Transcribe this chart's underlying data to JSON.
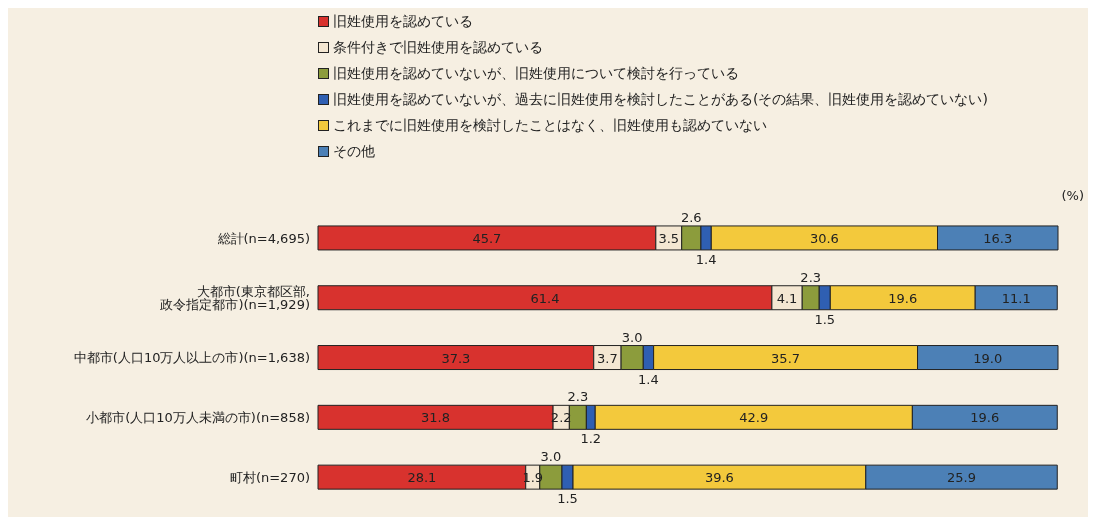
{
  "chart_data": {
    "type": "bar",
    "orientation": "horizontal",
    "stacked": true,
    "xlabel": "(%)",
    "legend": "top left",
    "categories": [
      "総計(n=4,695)",
      "大都市(東京都区部, 政令指定都市)(n=1,929)",
      "中都市(人口10万人以上の市)(n=1,638)",
      "小都市(人口10万人未満の市)(n=858)",
      "町村(n=270)"
    ],
    "series": [
      {
        "name": "旧姓使用を認めている",
        "color": "#d8322e",
        "values": [
          45.7,
          61.4,
          37.3,
          31.8,
          28.1
        ],
        "value_labels": [
          "45.7",
          "61.4",
          "37.3",
          "31.8",
          "28.1"
        ]
      },
      {
        "name": "条件付きで旧姓使用を認めている",
        "color": "#f4e7d2",
        "values": [
          3.5,
          4.1,
          3.7,
          2.2,
          1.9
        ],
        "value_labels": [
          "3.5",
          "4.1",
          "3.7",
          "2.2",
          "1.9"
        ]
      },
      {
        "name": "旧姓使用を認めていないが、旧姓使用について検討を行っている",
        "color": "#8c9c3c",
        "values": [
          2.6,
          2.3,
          3.0,
          2.3,
          3.0
        ],
        "value_labels": [
          "2.6",
          "2.3",
          "3.0",
          "2.3",
          "3.0"
        ]
      },
      {
        "name": "旧姓使用を認めていないが、過去に旧姓使用を検討したことがある(その結果、旧姓使用を認めていない)",
        "color": "#2f5fb2",
        "values": [
          1.4,
          1.5,
          1.4,
          1.2,
          1.5
        ],
        "value_labels": [
          "1.4",
          "1.5",
          "1.4",
          "1.2",
          "1.5"
        ]
      },
      {
        "name": "これまでに旧姓使用を検討したことはなく、旧姓使用も認めていない",
        "color": "#f3c93c",
        "values": [
          30.6,
          19.6,
          35.7,
          42.9,
          39.6
        ],
        "value_labels": [
          "30.6",
          "19.6",
          "35.7",
          "42.9",
          "39.6"
        ]
      },
      {
        "name": "その他",
        "color": "#4c80b6",
        "values": [
          16.3,
          11.1,
          19.0,
          19.6,
          25.9
        ],
        "value_labels": [
          "16.3",
          "11.1",
          "19.0",
          "19.6",
          "25.9"
        ]
      }
    ]
  }
}
